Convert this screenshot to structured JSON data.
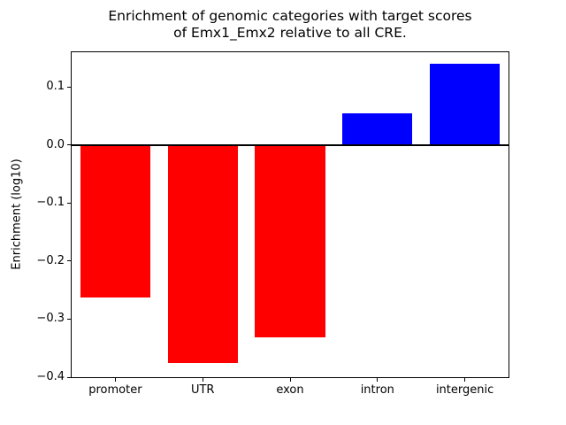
{
  "chart_data": {
    "type": "bar",
    "title": "Enrichment of genomic categories with target scores\nof Emx1_Emx2 relative to all CRE.",
    "xlabel": "",
    "ylabel": "Enrichment (log10)",
    "categories": [
      "promoter",
      "UTR",
      "exon",
      "intron",
      "intergenic"
    ],
    "values": [
      -0.263,
      -0.375,
      -0.332,
      0.055,
      0.14
    ],
    "bar_colors": [
      "#ff0000",
      "#ff0000",
      "#ff0000",
      "#0000ff",
      "#0000ff"
    ],
    "negative_color": "#ff0000",
    "positive_color": "#0000ff",
    "ylim": [
      -0.4,
      0.16
    ],
    "yticks": [
      -0.4,
      -0.3,
      -0.2,
      -0.1,
      0.0,
      0.1
    ],
    "zero_line": true,
    "grid": false,
    "legend_position": "none"
  }
}
